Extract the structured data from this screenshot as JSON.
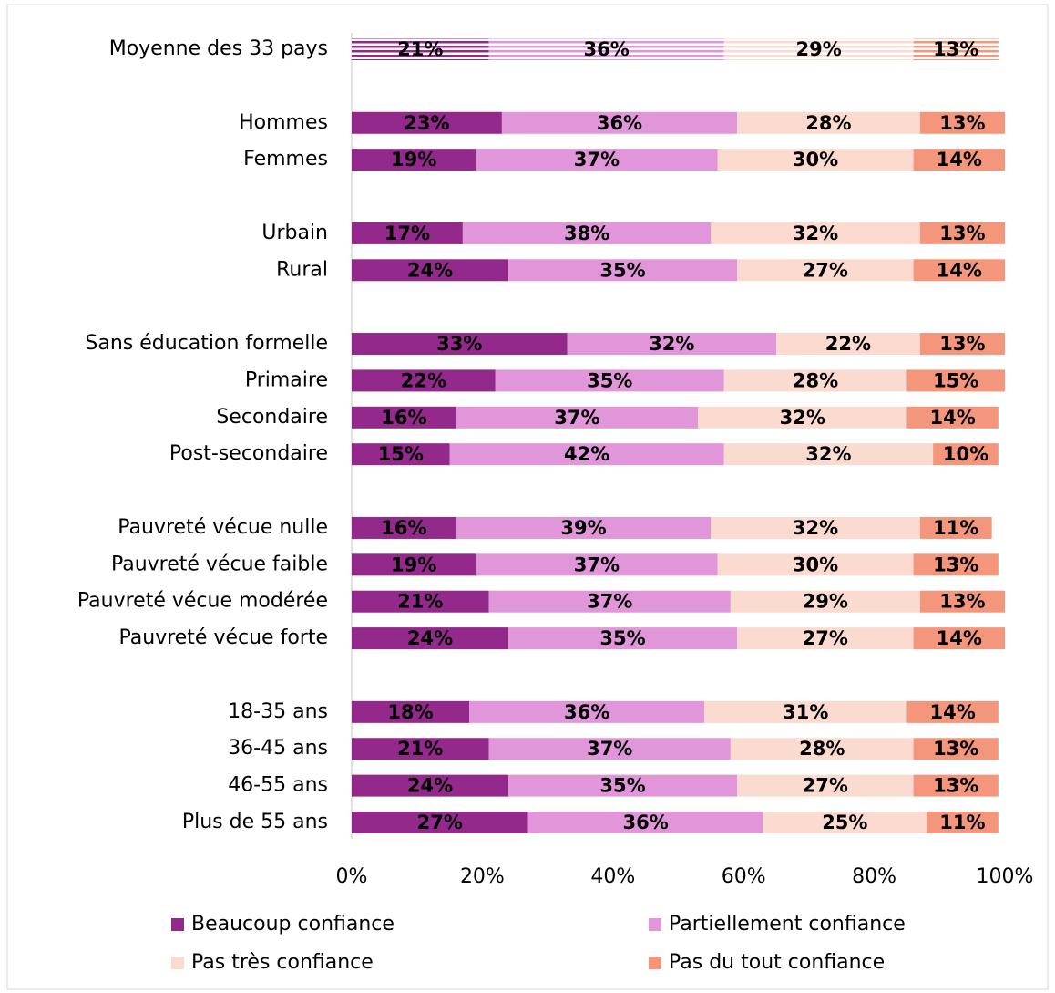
{
  "chart_data": {
    "type": "stacked_barh",
    "categories": [
      "Moyenne des 33 pays",
      null,
      "Hommes",
      "Femmes",
      null,
      "Urbain",
      "Rural",
      null,
      "Sans éducation formelle",
      "Primaire",
      "Secondaire",
      "Post-secondaire",
      null,
      "Pauvreté vécue nulle",
      "Pauvreté vécue faible",
      "Pauvreté vécue modérée",
      "Pauvreté vécue forte",
      null,
      "18-35 ans",
      "36-45 ans",
      "46-55 ans",
      "Plus de 55 ans"
    ],
    "series": [
      {
        "name": "Beaucoup confiance",
        "color": "#93298a",
        "label_color": "#ffffff",
        "values": [
          21,
          null,
          23,
          19,
          null,
          17,
          24,
          null,
          33,
          22,
          16,
          15,
          null,
          16,
          19,
          21,
          24,
          null,
          18,
          21,
          24,
          27
        ],
        "value_labels": [
          "21%",
          null,
          "23%",
          "19%",
          null,
          "17%",
          "24%",
          null,
          "33%",
          "22%",
          "16%",
          "15%",
          null,
          "16%",
          "19%",
          "21%",
          "24%",
          null,
          "18%",
          "21%",
          "24%",
          "27%"
        ]
      },
      {
        "name": "Partiellement confiance",
        "color": "#e096d9",
        "label_color": "#ffffff",
        "values": [
          36,
          null,
          36,
          37,
          null,
          38,
          35,
          null,
          32,
          35,
          37,
          42,
          null,
          39,
          37,
          37,
          35,
          null,
          36,
          37,
          35,
          36
        ],
        "value_labels": [
          "36%",
          null,
          "36%",
          "37%",
          null,
          "38%",
          "35%",
          null,
          "32%",
          "35%",
          "37%",
          "42%",
          null,
          "39%",
          "37%",
          "37%",
          "35%",
          null,
          "36%",
          "37%",
          "35%",
          "36%"
        ]
      },
      {
        "name": "Pas très confiance",
        "color": "#fbdad0",
        "label_color": "#000000",
        "values": [
          29,
          null,
          28,
          30,
          null,
          32,
          27,
          null,
          22,
          28,
          32,
          32,
          null,
          32,
          30,
          29,
          27,
          null,
          31,
          28,
          27,
          25
        ],
        "value_labels": [
          "29%",
          null,
          "28%",
          "30%",
          null,
          "32%",
          "27%",
          null,
          "22%",
          "28%",
          "32%",
          "32%",
          null,
          "32%",
          "30%",
          "29%",
          "27%",
          null,
          "31%",
          "28%",
          "27%",
          "25%"
        ]
      },
      {
        "name": "Pas du tout confiance",
        "color": "#f4967c",
        "label_color": "#000000",
        "values": [
          13,
          null,
          13,
          14,
          null,
          13,
          14,
          null,
          13,
          15,
          14,
          10,
          null,
          11,
          13,
          13,
          14,
          null,
          14,
          13,
          13,
          11
        ],
        "value_labels": [
          "13%",
          null,
          "13%",
          "14%",
          null,
          "13%",
          "14%",
          null,
          "13%",
          "15%",
          "14%",
          "10%",
          null,
          "11%",
          "13%",
          "13%",
          "14%",
          null,
          "14%",
          "13%",
          "13%",
          "11%"
        ]
      }
    ],
    "hatched_rows": [
      0
    ],
    "xlim": [
      0,
      100
    ],
    "xticks": [
      {
        "value": 0,
        "label": "0%"
      },
      {
        "value": 20,
        "label": "20%"
      },
      {
        "value": 40,
        "label": "40%"
      },
      {
        "value": 60,
        "label": "60%"
      },
      {
        "value": 80,
        "label": "80%"
      },
      {
        "value": 100,
        "label": "100%"
      }
    ],
    "legend": "bottom"
  }
}
